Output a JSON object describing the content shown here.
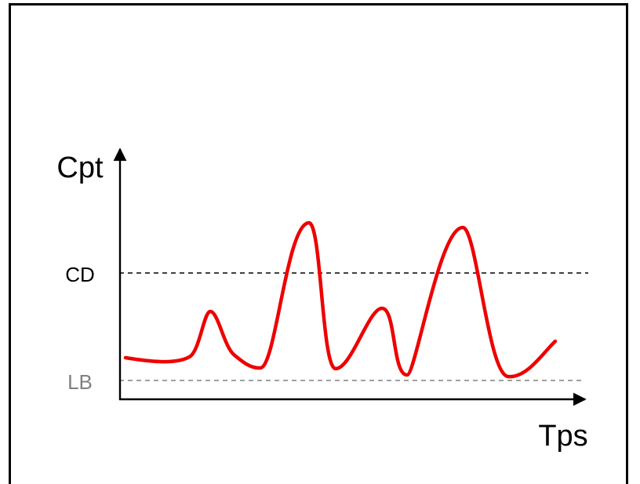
{
  "diagram": {
    "y_axis_label": "Cpt",
    "x_axis_label": "Tps",
    "threshold_labels": {
      "cd": "CD",
      "lb": "LB"
    },
    "colors": {
      "curve": "#ee0000",
      "axis": "#000000",
      "cd_line": "#000000",
      "lb_line": "#808080",
      "lb_label": "#808080"
    }
  }
}
